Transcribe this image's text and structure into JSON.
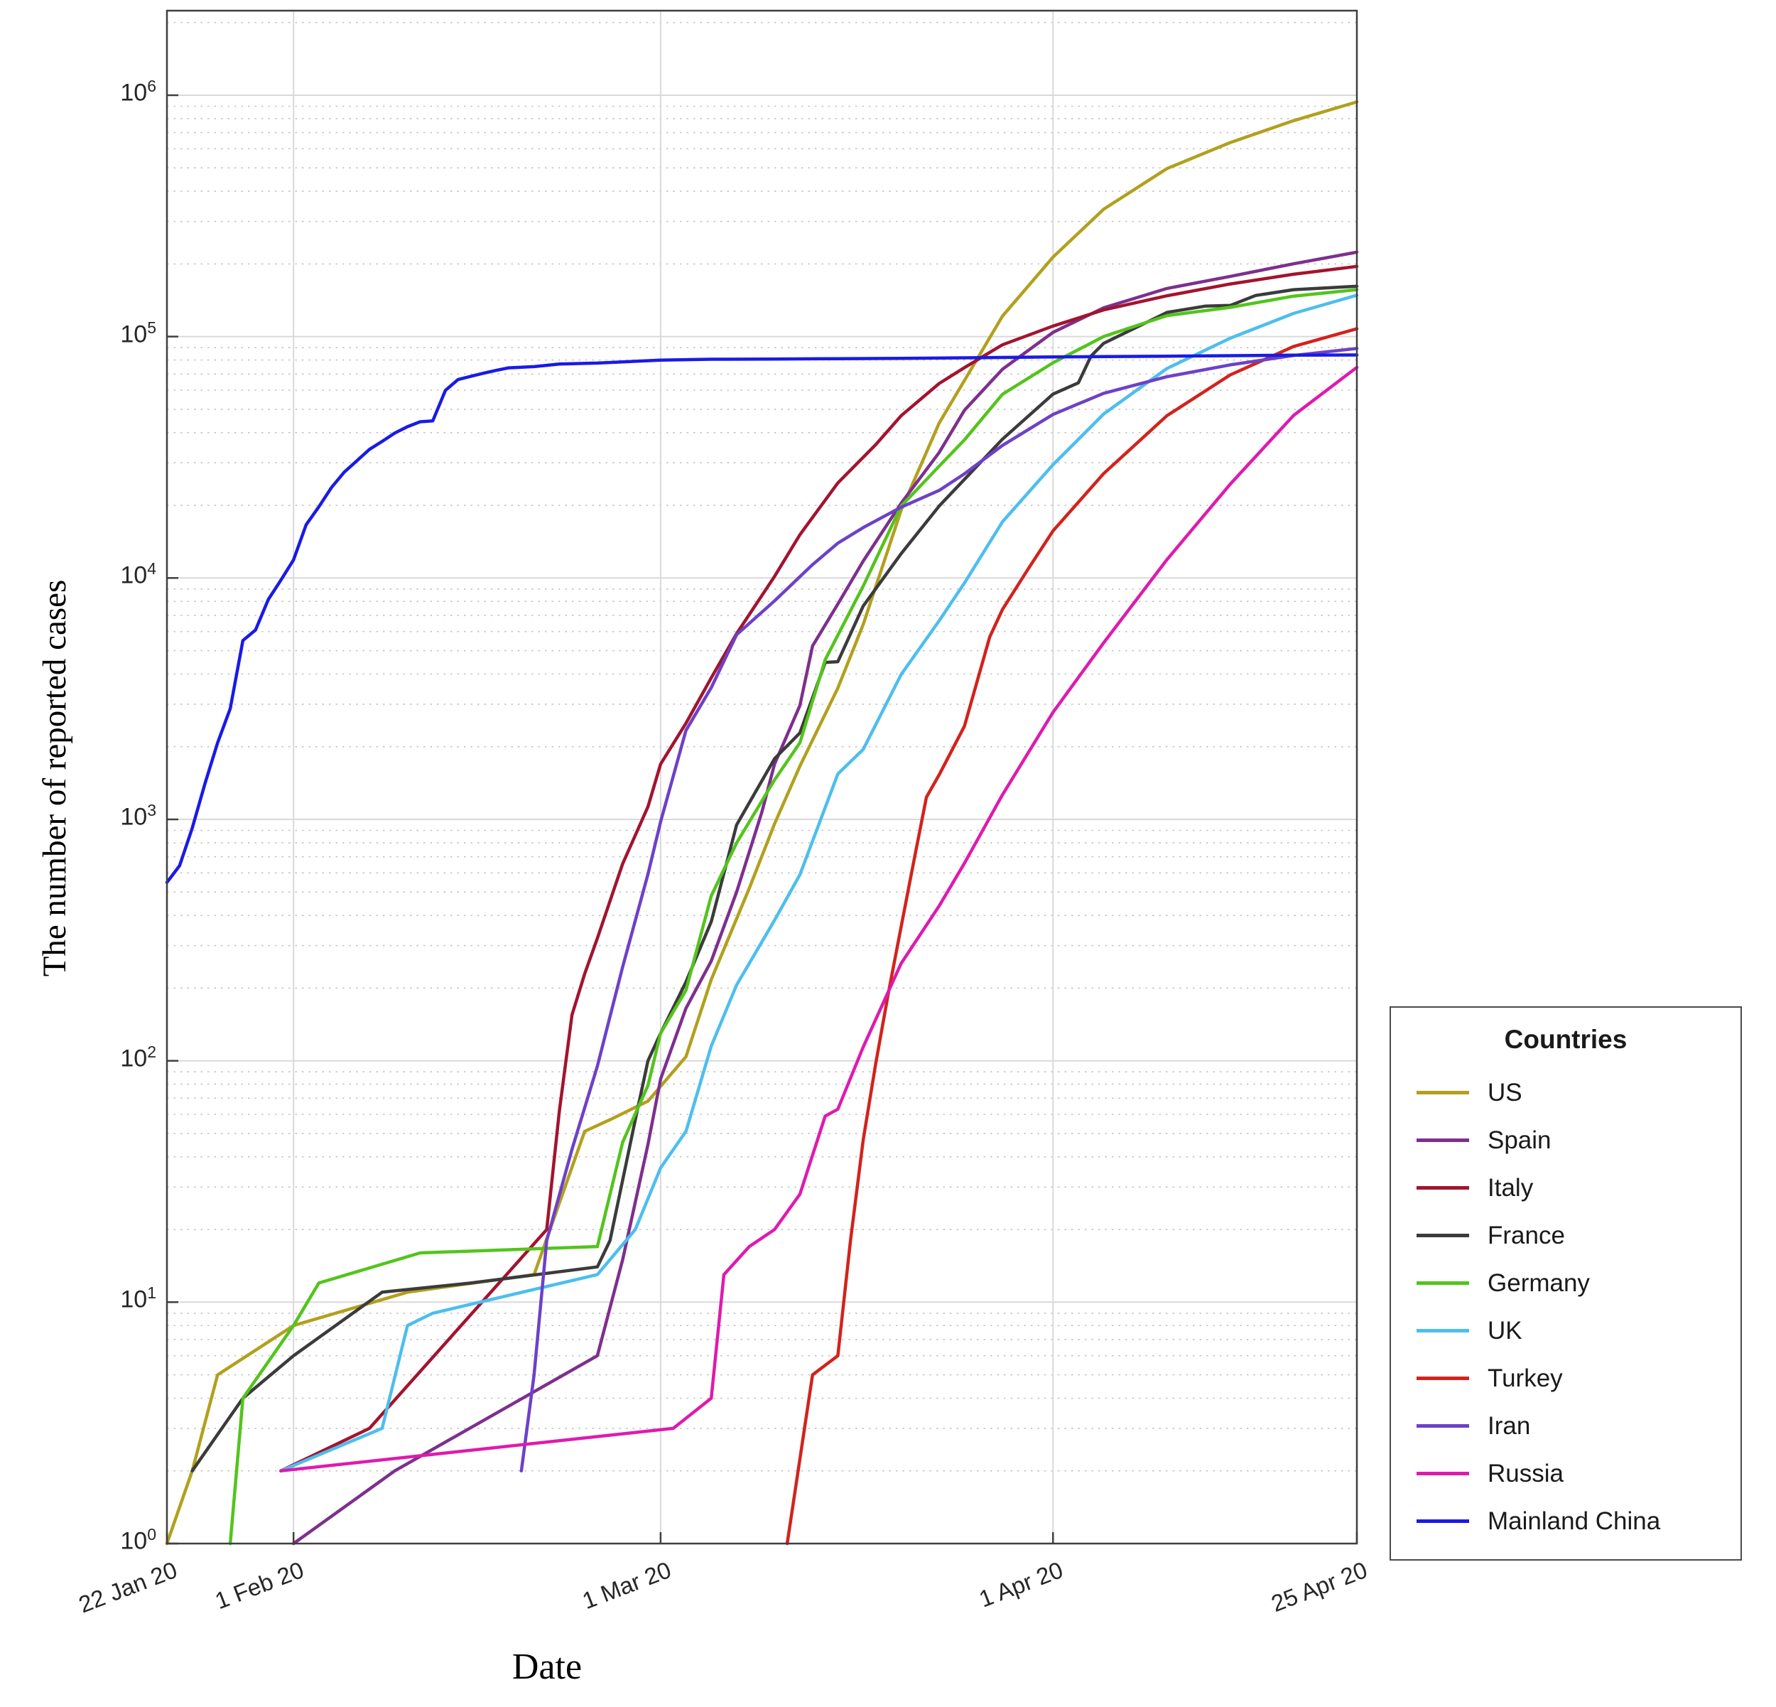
{
  "chart_data": {
    "type": "line",
    "title": "",
    "x_axis": {
      "label": "Date",
      "range_days": [
        0,
        94
      ],
      "tick_days": [
        0,
        10,
        39,
        70,
        94
      ],
      "tick_labels": [
        "22 Jan 20",
        "1 Feb 20",
        "1 Mar 20",
        "1 Apr 20",
        "25 Apr 20"
      ]
    },
    "y_axis": {
      "label": "The number of reported cases",
      "scale": "log",
      "range": [
        1,
        2240000
      ],
      "tick_exponents": [
        0,
        1,
        2,
        3,
        4,
        5,
        6
      ]
    },
    "grid": {
      "major_on": true,
      "minor_on": true,
      "major_color": "#d9d9d9",
      "minor_color": "#c3c3c3"
    },
    "legend": {
      "title": "Countries",
      "position": "right-outside"
    },
    "series": [
      {
        "name": "US",
        "color": "#B2A01E",
        "points": [
          [
            0,
            1
          ],
          [
            2,
            2
          ],
          [
            4,
            5
          ],
          [
            10,
            8
          ],
          [
            19,
            11
          ],
          [
            29,
            13
          ],
          [
            33,
            51
          ],
          [
            35,
            57
          ],
          [
            38,
            68
          ],
          [
            41,
            104
          ],
          [
            43,
            217
          ],
          [
            46,
            518
          ],
          [
            48,
            959
          ],
          [
            50,
            1663
          ],
          [
            53,
            3499
          ],
          [
            55,
            6421
          ],
          [
            58,
            19100
          ],
          [
            61,
            43843
          ],
          [
            63,
            65778
          ],
          [
            66,
            121478
          ],
          [
            70,
            213372
          ],
          [
            74,
            337072
          ],
          [
            79,
            496535
          ],
          [
            84,
            636350
          ],
          [
            89,
            784326
          ],
          [
            94,
            938154
          ]
        ]
      },
      {
        "name": "Spain",
        "color": "#7E2F8E",
        "points": [
          [
            10,
            1
          ],
          [
            18,
            2
          ],
          [
            34,
            6
          ],
          [
            36,
            15
          ],
          [
            38,
            45
          ],
          [
            39,
            84
          ],
          [
            41,
            165
          ],
          [
            43,
            259
          ],
          [
            45,
            500
          ],
          [
            47,
            1073
          ],
          [
            48,
            1695
          ],
          [
            50,
            2965
          ],
          [
            51,
            5232
          ],
          [
            53,
            7798
          ],
          [
            55,
            11748
          ],
          [
            58,
            20410
          ],
          [
            61,
            33089
          ],
          [
            63,
            49515
          ],
          [
            66,
            73235
          ],
          [
            70,
            104118
          ],
          [
            74,
            131646
          ],
          [
            79,
            158273
          ],
          [
            84,
            177644
          ],
          [
            89,
            200210
          ],
          [
            94,
            223759
          ]
        ]
      },
      {
        "name": "Italy",
        "color": "#A2142F",
        "points": [
          [
            9,
            2
          ],
          [
            16,
            3
          ],
          [
            30,
            20
          ],
          [
            31,
            62
          ],
          [
            32,
            155
          ],
          [
            33,
            229
          ],
          [
            34,
            322
          ],
          [
            36,
            655
          ],
          [
            38,
            1128
          ],
          [
            39,
            1694
          ],
          [
            41,
            2502
          ],
          [
            43,
            3858
          ],
          [
            45,
            5883
          ],
          [
            48,
            10149
          ],
          [
            50,
            15113
          ],
          [
            53,
            24747
          ],
          [
            56,
            35713
          ],
          [
            58,
            47021
          ],
          [
            61,
            63927
          ],
          [
            63,
            74386
          ],
          [
            66,
            92472
          ],
          [
            70,
            110574
          ],
          [
            74,
            128948
          ],
          [
            79,
            147577
          ],
          [
            84,
            165155
          ],
          [
            89,
            181228
          ],
          [
            94,
            195351
          ]
        ]
      },
      {
        "name": "France",
        "color": "#3B3B3B",
        "points": [
          [
            2,
            2
          ],
          [
            6,
            4
          ],
          [
            10,
            6
          ],
          [
            17,
            11
          ],
          [
            24,
            12
          ],
          [
            34,
            14
          ],
          [
            35,
            18
          ],
          [
            37,
            57
          ],
          [
            38,
            100
          ],
          [
            39,
            130
          ],
          [
            41,
            212
          ],
          [
            43,
            377
          ],
          [
            45,
            949
          ],
          [
            48,
            1784
          ],
          [
            50,
            2281
          ],
          [
            52,
            4469
          ],
          [
            53,
            4499
          ],
          [
            55,
            7652
          ],
          [
            58,
            12612
          ],
          [
            61,
            19856
          ],
          [
            63,
            25600
          ],
          [
            66,
            37575
          ],
          [
            70,
            57749
          ],
          [
            72,
            64338
          ],
          [
            73,
            83080
          ],
          [
            74,
            93780
          ],
          [
            79,
            125931
          ],
          [
            82,
            133670
          ],
          [
            84,
            134598
          ],
          [
            86,
            147969
          ],
          [
            89,
            156480
          ],
          [
            94,
            161644
          ]
        ]
      },
      {
        "name": "Germany",
        "color": "#53C41C",
        "points": [
          [
            5,
            1
          ],
          [
            6,
            4
          ],
          [
            10,
            8
          ],
          [
            12,
            12
          ],
          [
            20,
            16
          ],
          [
            34,
            17
          ],
          [
            36,
            46
          ],
          [
            38,
            79
          ],
          [
            39,
            130
          ],
          [
            41,
            196
          ],
          [
            43,
            482
          ],
          [
            45,
            799
          ],
          [
            48,
            1457
          ],
          [
            50,
            2078
          ],
          [
            52,
            4585
          ],
          [
            53,
            5795
          ],
          [
            55,
            9257
          ],
          [
            58,
            19848
          ],
          [
            61,
            29056
          ],
          [
            63,
            37323
          ],
          [
            66,
            57695
          ],
          [
            70,
            77872
          ],
          [
            74,
            100123
          ],
          [
            79,
            122171
          ],
          [
            84,
            132210
          ],
          [
            89,
            147065
          ],
          [
            94,
            156513
          ]
        ]
      },
      {
        "name": "UK",
        "color": "#4DBEEE",
        "points": [
          [
            9,
            2
          ],
          [
            17,
            3
          ],
          [
            19,
            8
          ],
          [
            21,
            9
          ],
          [
            34,
            13
          ],
          [
            37,
            20
          ],
          [
            39,
            36
          ],
          [
            41,
            51
          ],
          [
            43,
            115
          ],
          [
            45,
            206
          ],
          [
            48,
            382
          ],
          [
            50,
            590
          ],
          [
            53,
            1543
          ],
          [
            55,
            1950
          ],
          [
            58,
            3983
          ],
          [
            61,
            6650
          ],
          [
            63,
            9529
          ],
          [
            66,
            17089
          ],
          [
            70,
            29474
          ],
          [
            74,
            47806
          ],
          [
            79,
            73758
          ],
          [
            84,
            98476
          ],
          [
            89,
            124743
          ],
          [
            94,
            148377
          ]
        ]
      },
      {
        "name": "Turkey",
        "color": "#D2231C",
        "points": [
          [
            49,
            1
          ],
          [
            51,
            5
          ],
          [
            53,
            6
          ],
          [
            54,
            18
          ],
          [
            55,
            47
          ],
          [
            56,
            98
          ],
          [
            57,
            192
          ],
          [
            58,
            359
          ],
          [
            59,
            670
          ],
          [
            60,
            1236
          ],
          [
            61,
            1529
          ],
          [
            63,
            2433
          ],
          [
            65,
            5698
          ],
          [
            66,
            7402
          ],
          [
            68,
            10827
          ],
          [
            70,
            15679
          ],
          [
            74,
            27069
          ],
          [
            79,
            47029
          ],
          [
            84,
            69392
          ],
          [
            89,
            90980
          ],
          [
            94,
            107773
          ]
        ]
      },
      {
        "name": "Iran",
        "color": "#6D41C8",
        "points": [
          [
            28,
            2
          ],
          [
            29,
            5
          ],
          [
            30,
            18
          ],
          [
            32,
            43
          ],
          [
            34,
            95
          ],
          [
            36,
            245
          ],
          [
            38,
            593
          ],
          [
            39,
            978
          ],
          [
            41,
            2336
          ],
          [
            43,
            3513
          ],
          [
            45,
            5823
          ],
          [
            48,
            8042
          ],
          [
            51,
            11364
          ],
          [
            53,
            13938
          ],
          [
            55,
            16169
          ],
          [
            58,
            19644
          ],
          [
            61,
            23049
          ],
          [
            63,
            27017
          ],
          [
            66,
            35408
          ],
          [
            70,
            47593
          ],
          [
            74,
            58226
          ],
          [
            79,
            68192
          ],
          [
            84,
            76389
          ],
          [
            89,
            83505
          ],
          [
            94,
            89328
          ]
        ]
      },
      {
        "name": "Russia",
        "color": "#DE1BAE",
        "points": [
          [
            9,
            2
          ],
          [
            40,
            3
          ],
          [
            43,
            4
          ],
          [
            44,
            13
          ],
          [
            46,
            17
          ],
          [
            48,
            20
          ],
          [
            50,
            28
          ],
          [
            52,
            59
          ],
          [
            53,
            63
          ],
          [
            55,
            114
          ],
          [
            58,
            253
          ],
          [
            61,
            438
          ],
          [
            63,
            658
          ],
          [
            66,
            1264
          ],
          [
            70,
            2777
          ],
          [
            74,
            5389
          ],
          [
            79,
            11917
          ],
          [
            84,
            24490
          ],
          [
            89,
            47121
          ],
          [
            94,
            74588
          ]
        ]
      },
      {
        "name": "Mainland China",
        "color": "#1A1AE6",
        "points": [
          [
            0,
            548
          ],
          [
            1,
            643
          ],
          [
            2,
            920
          ],
          [
            3,
            1406
          ],
          [
            4,
            2075
          ],
          [
            5,
            2877
          ],
          [
            6,
            5509
          ],
          [
            7,
            6087
          ],
          [
            8,
            8141
          ],
          [
            9,
            9802
          ],
          [
            10,
            11891
          ],
          [
            11,
            16630
          ],
          [
            12,
            19716
          ],
          [
            13,
            23707
          ],
          [
            14,
            27440
          ],
          [
            15,
            30587
          ],
          [
            16,
            34110
          ],
          [
            17,
            36814
          ],
          [
            18,
            39829
          ],
          [
            19,
            42354
          ],
          [
            20,
            44386
          ],
          [
            21,
            44759
          ],
          [
            22,
            59895
          ],
          [
            23,
            66358
          ],
          [
            24,
            68413
          ],
          [
            25,
            70513
          ],
          [
            26,
            72434
          ],
          [
            27,
            74211
          ],
          [
            29,
            75077
          ],
          [
            31,
            77001
          ],
          [
            34,
            77660
          ],
          [
            39,
            79932
          ],
          [
            43,
            80552
          ],
          [
            48,
            80757
          ],
          [
            53,
            81003
          ],
          [
            58,
            81250
          ],
          [
            63,
            81661
          ],
          [
            70,
            82361
          ],
          [
            74,
            82602
          ],
          [
            79,
            82941
          ],
          [
            84,
            83356
          ],
          [
            89,
            83817
          ],
          [
            94,
            83909
          ]
        ]
      }
    ]
  }
}
